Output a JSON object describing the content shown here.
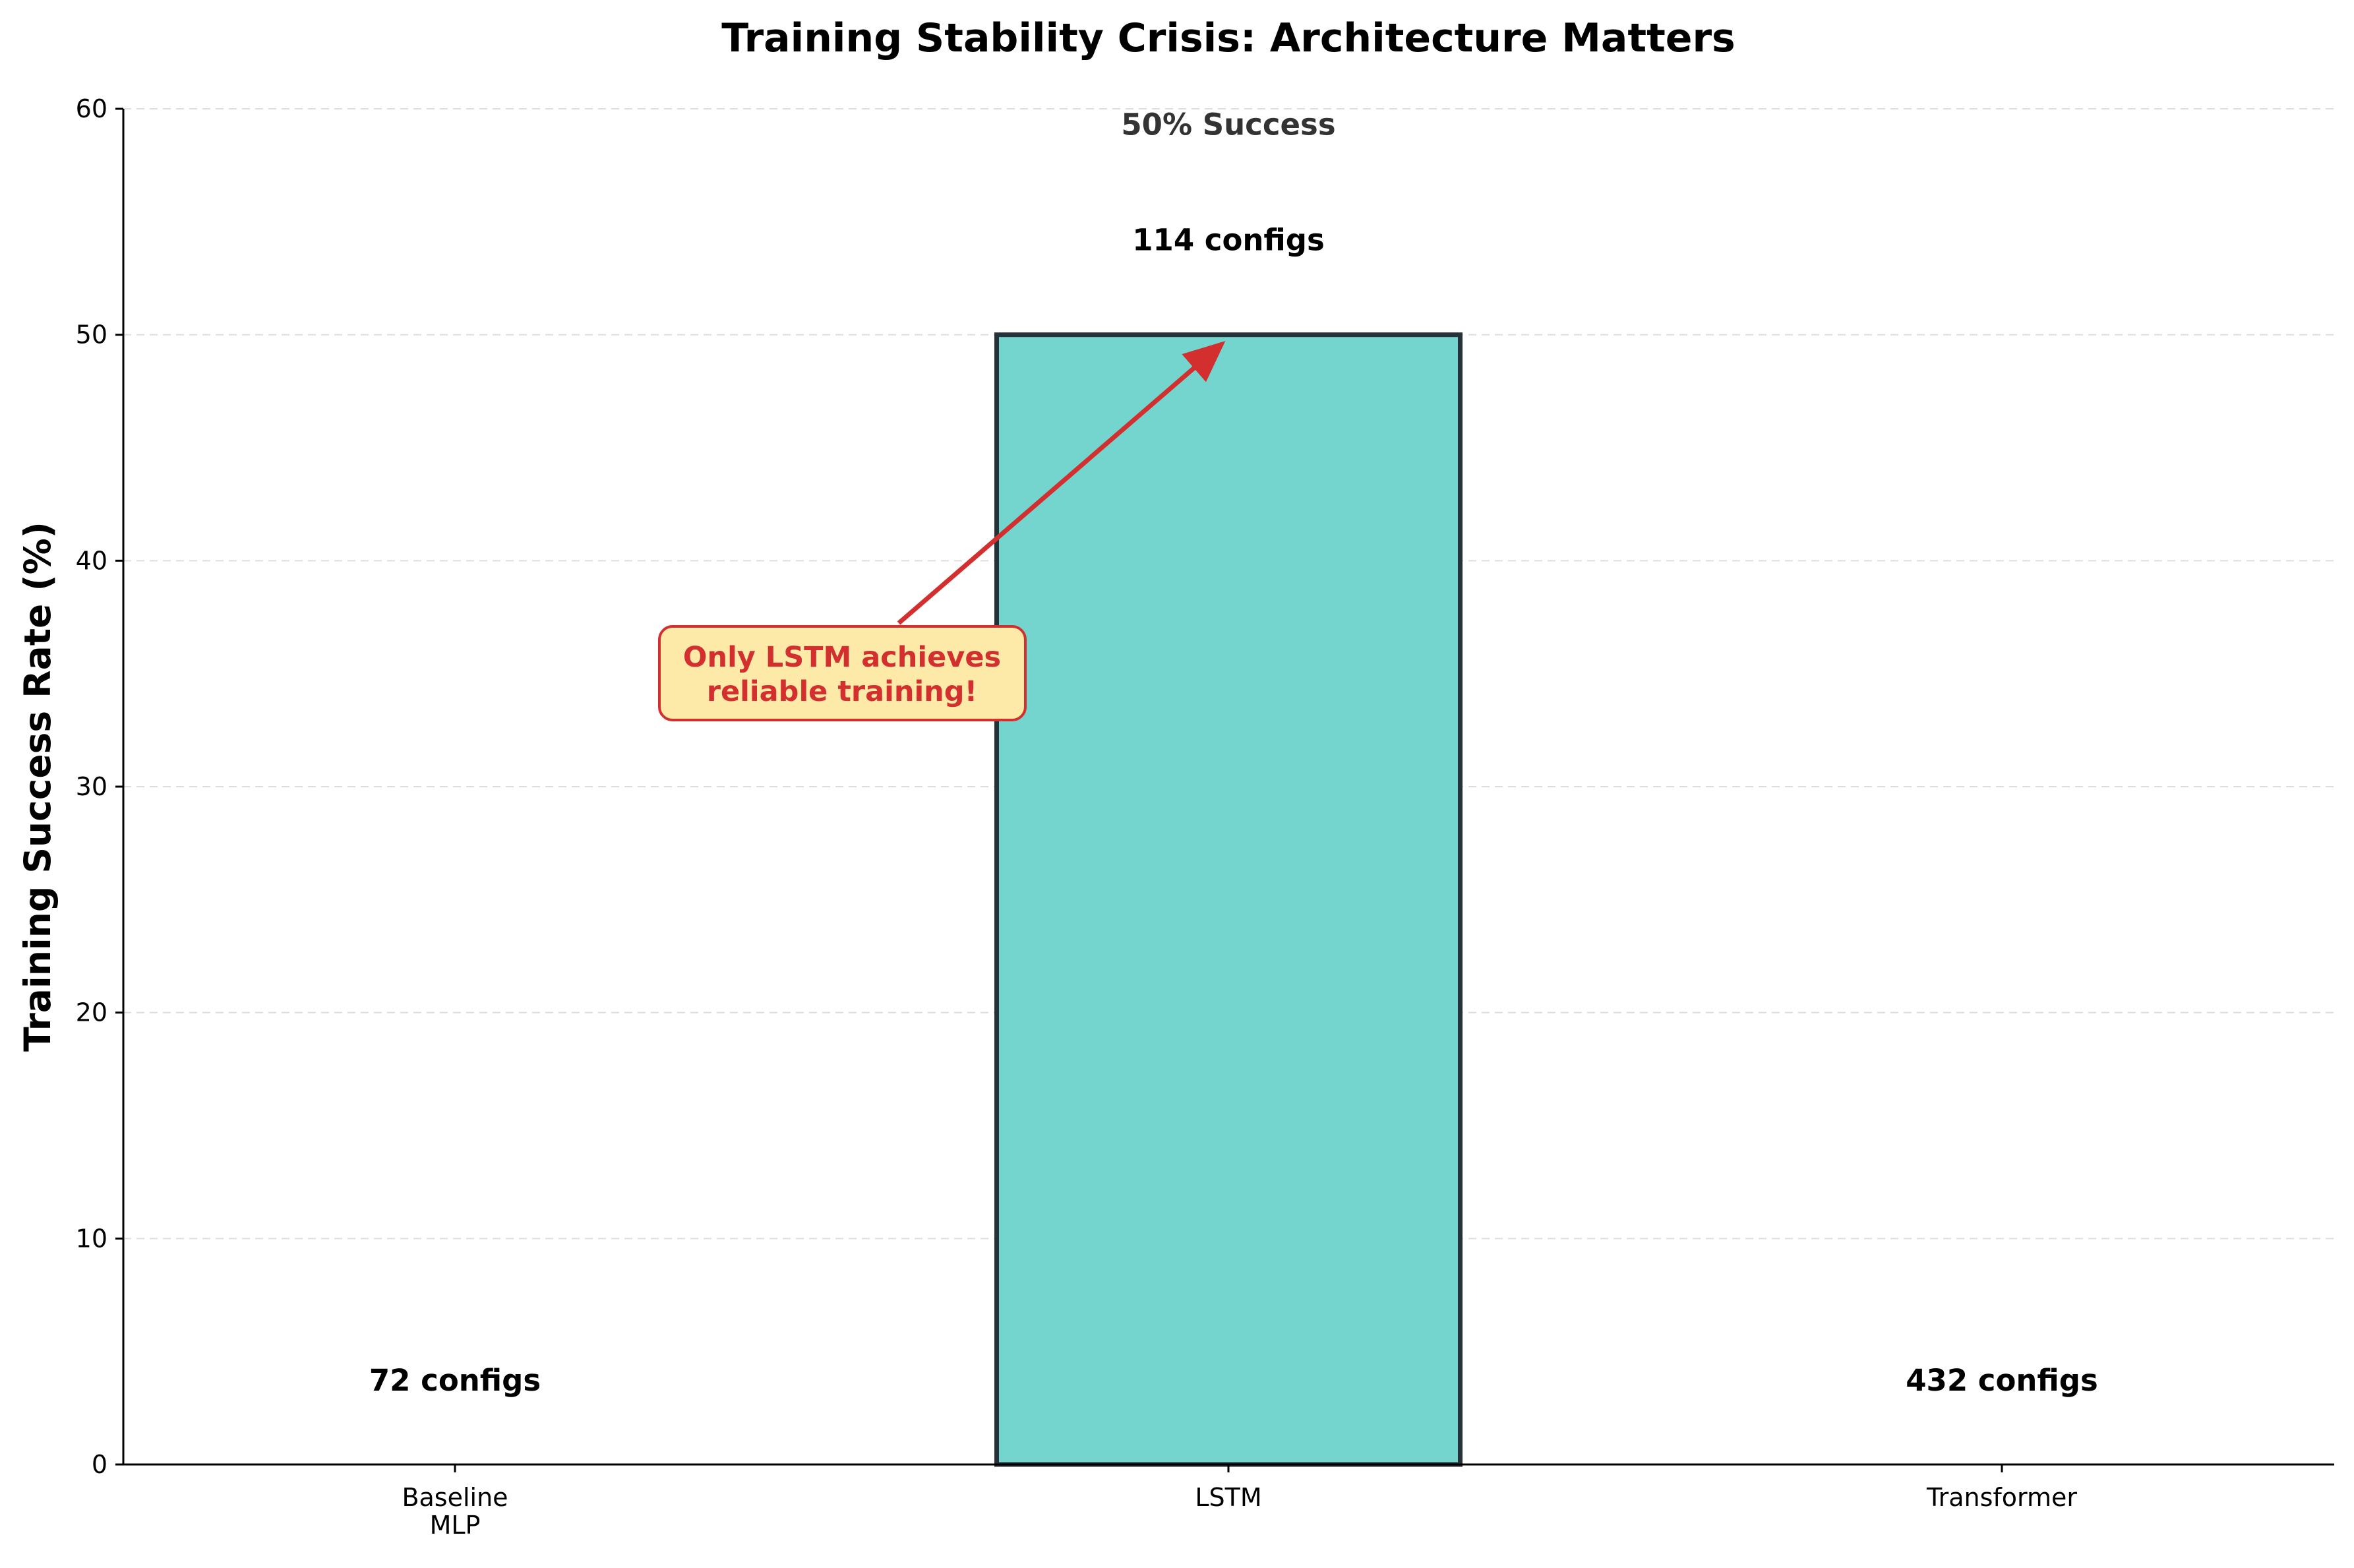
{
  "chart_data": {
    "type": "bar",
    "title": "Training Stability Crisis: Architecture Matters",
    "xlabel": "",
    "ylabel": "Training Success Rate (%)",
    "ylim": [
      0,
      60
    ],
    "yticks": [
      "0",
      "10",
      "20",
      "30",
      "40",
      "50",
      "60"
    ],
    "grid": "y dashed",
    "categories": [
      "Baseline\nMLP",
      "LSTM",
      "Transformer"
    ],
    "values": [
      0,
      50,
      0
    ],
    "config_labels": [
      "72 configs",
      "114 configs",
      "432 configs"
    ],
    "success_label": "50% Success",
    "annotation": {
      "text": [
        "Only LSTM achieves",
        "reliable training!"
      ],
      "target_category": "LSTM",
      "target_value": 50
    },
    "colors": {
      "bar_fill": "#74d5cf",
      "bar_edge": "#263238",
      "annotation_text": "#d32f2f",
      "annotation_box": "#fde9a8",
      "annotation_edge": "#d32f2f",
      "grid": "#dddddd"
    }
  }
}
